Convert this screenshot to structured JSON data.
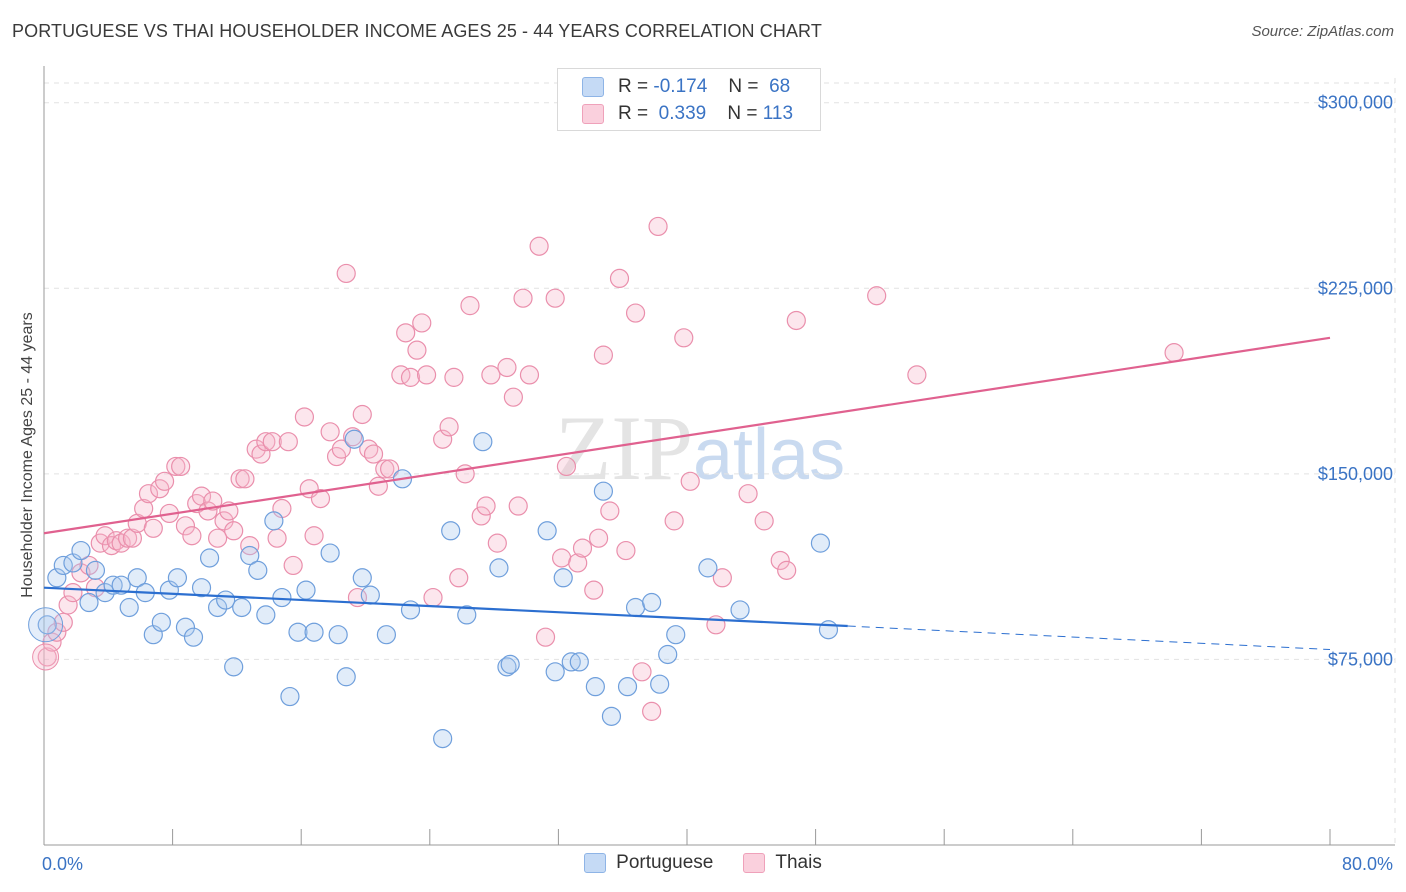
{
  "header": {
    "title": "PORTUGUESE VS THAI HOUSEHOLDER INCOME AGES 25 - 44 YEARS CORRELATION CHART",
    "source": "Source: ZipAtlas.com"
  },
  "legend": {
    "rows": [
      {
        "r_label": "R =",
        "r_value": "-0.174",
        "n_label": "N =",
        "n_value": "68",
        "color": "#a9c8ef"
      },
      {
        "r_label": "R =",
        "r_value": "0.339",
        "n_label": "N =",
        "n_value": "113",
        "color": "#f5b6ca"
      }
    ]
  },
  "watermark": {
    "zip": "ZIP",
    "atlas": "atlas"
  },
  "bottom_legend": [
    {
      "label": "Portuguese",
      "color": "#a9c8ef"
    },
    {
      "label": "Thais",
      "color": "#f5b6ca"
    }
  ],
  "colors": {
    "portuguese_fill": "rgba(169,200,239,0.35)",
    "portuguese_stroke": "#6f9fdc",
    "portuguese_line": "#2c6fd0",
    "thai_fill": "rgba(245,182,202,0.35)",
    "thai_stroke": "#ea8fac",
    "thai_line": "#e0618f",
    "tick_text": "#3a73c4"
  },
  "chart_data": {
    "type": "scatter",
    "title": "PORTUGUESE VS THAI HOUSEHOLDER INCOME AGES 25 - 44 YEARS CORRELATION CHART",
    "xlabel": "",
    "ylabel": "Householder Income Ages 25 - 44 years",
    "xlim": [
      0,
      80
    ],
    "ylim": [
      0,
      310000
    ],
    "x_tick_labels": [
      "0.0%",
      "80.0%"
    ],
    "y_ticks": [
      75000,
      150000,
      225000,
      300000
    ],
    "y_tick_labels": [
      "$75,000",
      "$150,000",
      "$225,000",
      "$300,000"
    ],
    "grid": true,
    "legend_position": "top-center",
    "series": [
      {
        "name": "Portuguese",
        "r": -0.174,
        "n": 68,
        "trend": {
          "x0": 0,
          "y0": 104000,
          "x1": 50,
          "y1": 88500,
          "dashed_to_x": 80,
          "dashed_to_y": 79000
        },
        "points": [
          [
            0.2,
            89000
          ],
          [
            0.8,
            108000
          ],
          [
            1.2,
            113000
          ],
          [
            1.8,
            114000
          ],
          [
            2.3,
            119000
          ],
          [
            2.8,
            98000
          ],
          [
            3.2,
            111000
          ],
          [
            3.8,
            102000
          ],
          [
            4.3,
            105000
          ],
          [
            4.8,
            105000
          ],
          [
            5.3,
            96000
          ],
          [
            5.8,
            108000
          ],
          [
            6.3,
            102000
          ],
          [
            6.8,
            85000
          ],
          [
            7.3,
            90000
          ],
          [
            7.8,
            103000
          ],
          [
            8.3,
            108000
          ],
          [
            8.8,
            88000
          ],
          [
            9.3,
            84000
          ],
          [
            9.8,
            104000
          ],
          [
            10.3,
            116000
          ],
          [
            10.8,
            96000
          ],
          [
            11.3,
            99000
          ],
          [
            11.8,
            72000
          ],
          [
            12.3,
            96000
          ],
          [
            12.8,
            117000
          ],
          [
            13.3,
            111000
          ],
          [
            13.8,
            93000
          ],
          [
            14.3,
            131000
          ],
          [
            14.8,
            100000
          ],
          [
            15.3,
            60000
          ],
          [
            15.8,
            86000
          ],
          [
            16.3,
            103000
          ],
          [
            16.8,
            86000
          ],
          [
            17.8,
            118000
          ],
          [
            18.3,
            85000
          ],
          [
            18.8,
            68000
          ],
          [
            19.3,
            164000
          ],
          [
            19.8,
            108000
          ],
          [
            20.3,
            101000
          ],
          [
            21.3,
            85000
          ],
          [
            22.3,
            148000
          ],
          [
            22.8,
            95000
          ],
          [
            24.8,
            43000
          ],
          [
            25.3,
            127000
          ],
          [
            26.3,
            93000
          ],
          [
            27.3,
            163000
          ],
          [
            28.3,
            112000
          ],
          [
            28.8,
            72000
          ],
          [
            29.0,
            73000
          ],
          [
            31.3,
            127000
          ],
          [
            31.8,
            70000
          ],
          [
            32.3,
            108000
          ],
          [
            32.8,
            74000
          ],
          [
            33.3,
            74000
          ],
          [
            34.3,
            64000
          ],
          [
            34.8,
            143000
          ],
          [
            35.3,
            52000
          ],
          [
            36.3,
            64000
          ],
          [
            36.8,
            96000
          ],
          [
            37.8,
            98000
          ],
          [
            38.3,
            65000
          ],
          [
            38.8,
            77000
          ],
          [
            39.3,
            85000
          ],
          [
            41.3,
            112000
          ],
          [
            43.3,
            95000
          ],
          [
            48.3,
            122000
          ],
          [
            48.8,
            87000
          ]
        ]
      },
      {
        "name": "Thais",
        "r": 0.339,
        "n": 113,
        "trend": {
          "x0": 0,
          "y0": 126000,
          "x1": 80,
          "y1": 205000
        },
        "points": [
          [
            0.2,
            76000
          ],
          [
            0.5,
            82000
          ],
          [
            0.8,
            86000
          ],
          [
            1.2,
            90000
          ],
          [
            1.5,
            97000
          ],
          [
            1.8,
            102000
          ],
          [
            2.3,
            110000
          ],
          [
            2.8,
            113000
          ],
          [
            3.2,
            104000
          ],
          [
            3.5,
            122000
          ],
          [
            3.8,
            125000
          ],
          [
            4.2,
            121000
          ],
          [
            4.5,
            123000
          ],
          [
            4.8,
            122000
          ],
          [
            5.2,
            124000
          ],
          [
            5.5,
            124000
          ],
          [
            5.8,
            130000
          ],
          [
            6.2,
            136000
          ],
          [
            6.5,
            142000
          ],
          [
            6.8,
            128000
          ],
          [
            7.2,
            144000
          ],
          [
            7.5,
            147000
          ],
          [
            7.8,
            134000
          ],
          [
            8.2,
            153000
          ],
          [
            8.5,
            153000
          ],
          [
            8.8,
            129000
          ],
          [
            9.2,
            125000
          ],
          [
            9.5,
            138000
          ],
          [
            9.8,
            141000
          ],
          [
            10.2,
            135000
          ],
          [
            10.5,
            139000
          ],
          [
            10.8,
            124000
          ],
          [
            11.2,
            131000
          ],
          [
            11.5,
            135000
          ],
          [
            11.8,
            127000
          ],
          [
            12.2,
            148000
          ],
          [
            12.5,
            148000
          ],
          [
            12.8,
            121000
          ],
          [
            13.2,
            160000
          ],
          [
            13.5,
            158000
          ],
          [
            13.8,
            163000
          ],
          [
            14.2,
            163000
          ],
          [
            14.5,
            124000
          ],
          [
            14.8,
            136000
          ],
          [
            15.2,
            163000
          ],
          [
            15.5,
            113000
          ],
          [
            16.2,
            173000
          ],
          [
            16.5,
            144000
          ],
          [
            16.8,
            125000
          ],
          [
            17.2,
            140000
          ],
          [
            17.8,
            167000
          ],
          [
            18.2,
            157000
          ],
          [
            18.5,
            160000
          ],
          [
            18.8,
            231000
          ],
          [
            19.2,
            165000
          ],
          [
            19.5,
            100000
          ],
          [
            19.8,
            174000
          ],
          [
            20.2,
            160000
          ],
          [
            20.5,
            158000
          ],
          [
            20.8,
            145000
          ],
          [
            21.2,
            152000
          ],
          [
            21.5,
            152000
          ],
          [
            22.2,
            190000
          ],
          [
            22.5,
            207000
          ],
          [
            22.8,
            189000
          ],
          [
            23.2,
            200000
          ],
          [
            23.5,
            211000
          ],
          [
            23.8,
            190000
          ],
          [
            24.2,
            100000
          ],
          [
            24.8,
            164000
          ],
          [
            25.2,
            169000
          ],
          [
            25.5,
            189000
          ],
          [
            25.8,
            108000
          ],
          [
            26.2,
            150000
          ],
          [
            26.5,
            218000
          ],
          [
            27.2,
            133000
          ],
          [
            27.5,
            137000
          ],
          [
            27.8,
            190000
          ],
          [
            28.2,
            122000
          ],
          [
            28.8,
            193000
          ],
          [
            29.2,
            181000
          ],
          [
            29.5,
            137000
          ],
          [
            29.8,
            221000
          ],
          [
            30.2,
            190000
          ],
          [
            30.8,
            242000
          ],
          [
            31.2,
            84000
          ],
          [
            31.8,
            221000
          ],
          [
            32.2,
            116000
          ],
          [
            32.5,
            153000
          ],
          [
            33.2,
            114000
          ],
          [
            33.5,
            120000
          ],
          [
            34.2,
            103000
          ],
          [
            34.5,
            124000
          ],
          [
            34.8,
            198000
          ],
          [
            35.2,
            135000
          ],
          [
            35.8,
            229000
          ],
          [
            36.2,
            119000
          ],
          [
            36.8,
            215000
          ],
          [
            37.2,
            70000
          ],
          [
            37.8,
            54000
          ],
          [
            38.2,
            250000
          ],
          [
            39.2,
            131000
          ],
          [
            39.8,
            205000
          ],
          [
            40.2,
            147000
          ],
          [
            41.8,
            89000
          ],
          [
            42.2,
            108000
          ],
          [
            43.8,
            142000
          ],
          [
            44.8,
            131000
          ],
          [
            45.8,
            115000
          ],
          [
            46.2,
            111000
          ],
          [
            46.8,
            212000
          ],
          [
            51.8,
            222000
          ],
          [
            54.3,
            190000
          ],
          [
            70.3,
            199000
          ]
        ]
      }
    ]
  }
}
